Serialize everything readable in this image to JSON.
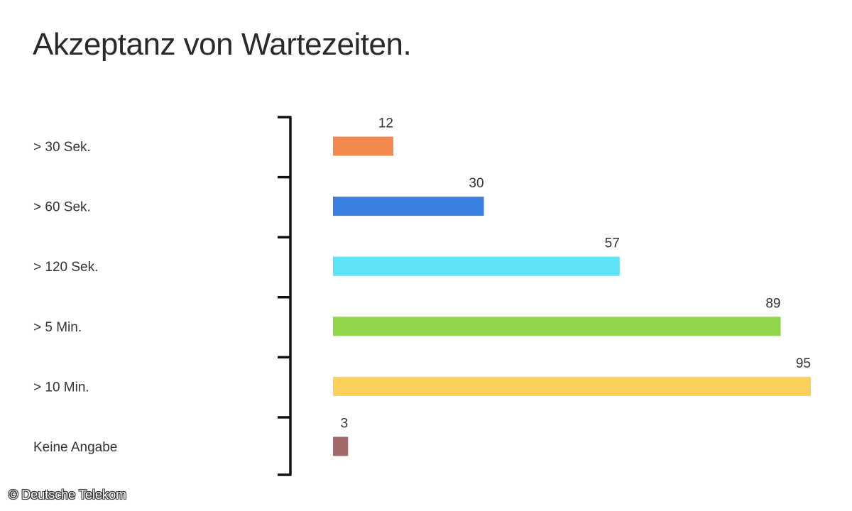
{
  "chart_data": {
    "type": "bar",
    "orientation": "horizontal",
    "title": "Akzeptanz von Wartezeiten.",
    "categories": [
      "> 30 Sek.",
      "> 60 Sek.",
      "> 120 Sek.",
      "> 5 Min.",
      "> 10 Min.",
      "Keine Angabe"
    ],
    "values": [
      12,
      30,
      57,
      89,
      95,
      3
    ],
    "colors": [
      "#f28a4e",
      "#3a80e0",
      "#5ee4f7",
      "#8fd64a",
      "#fdd05c",
      "#a26a6a"
    ],
    "xlim": [
      0,
      95
    ],
    "data_labels": true,
    "grid": false,
    "legend": "none"
  },
  "credit": "© Deutsche Telekom"
}
